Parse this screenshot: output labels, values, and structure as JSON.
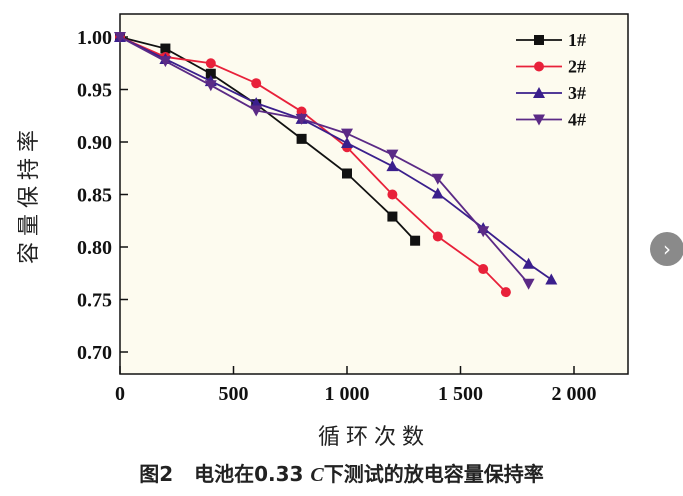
{
  "chart_data": {
    "type": "line",
    "title": "",
    "xlabel": "循环次数",
    "ylabel": "容量保持率",
    "xlim": [
      0,
      2000
    ],
    "ylim": [
      0.68,
      1.03
    ],
    "xticks": [
      0,
      500,
      1000,
      1500,
      2000
    ],
    "xtick_labels": [
      "0",
      "500",
      "1 000",
      "1 500",
      "2 000"
    ],
    "yticks": [
      0.7,
      0.75,
      0.8,
      0.85,
      0.9,
      0.95,
      1.0
    ],
    "ytick_labels": [
      "0.70",
      "0.75",
      "0.80",
      "0.85",
      "0.90",
      "0.95",
      "1.00"
    ],
    "grid": false,
    "legend_position": "top-right",
    "series": [
      {
        "name": "1#",
        "color": "#111111",
        "marker": "square",
        "x": [
          0,
          200,
          400,
          600,
          800,
          1000,
          1200,
          1300
        ],
        "y": [
          1.0,
          0.989,
          0.965,
          0.936,
          0.903,
          0.87,
          0.829,
          0.806
        ]
      },
      {
        "name": "2#",
        "color": "#e8213a",
        "marker": "circle",
        "x": [
          0,
          200,
          400,
          600,
          800,
          1000,
          1200,
          1400,
          1600,
          1700
        ],
        "y": [
          1.0,
          0.981,
          0.975,
          0.956,
          0.929,
          0.895,
          0.85,
          0.81,
          0.779,
          0.757
        ]
      },
      {
        "name": "3#",
        "color": "#3a1f8c",
        "marker": "triangle-up",
        "x": [
          0,
          200,
          400,
          600,
          800,
          1000,
          1200,
          1400,
          1600,
          1800,
          1900
        ],
        "y": [
          1.0,
          0.979,
          0.958,
          0.937,
          0.922,
          0.899,
          0.877,
          0.851,
          0.818,
          0.784,
          0.769
        ]
      },
      {
        "name": "4#",
        "color": "#5b2a86",
        "marker": "triangle-down",
        "x": [
          0,
          200,
          400,
          600,
          800,
          1000,
          1200,
          1400,
          1600,
          1800
        ],
        "y": [
          1.0,
          0.977,
          0.954,
          0.93,
          0.922,
          0.908,
          0.888,
          0.865,
          0.815,
          0.765
        ]
      }
    ]
  },
  "caption": {
    "prefix": "图2",
    "text1": "电池在0.33 ",
    "italic": "C",
    "text2": "下测试的放电容量保持率"
  },
  "nav": {
    "next_icon": "›"
  }
}
